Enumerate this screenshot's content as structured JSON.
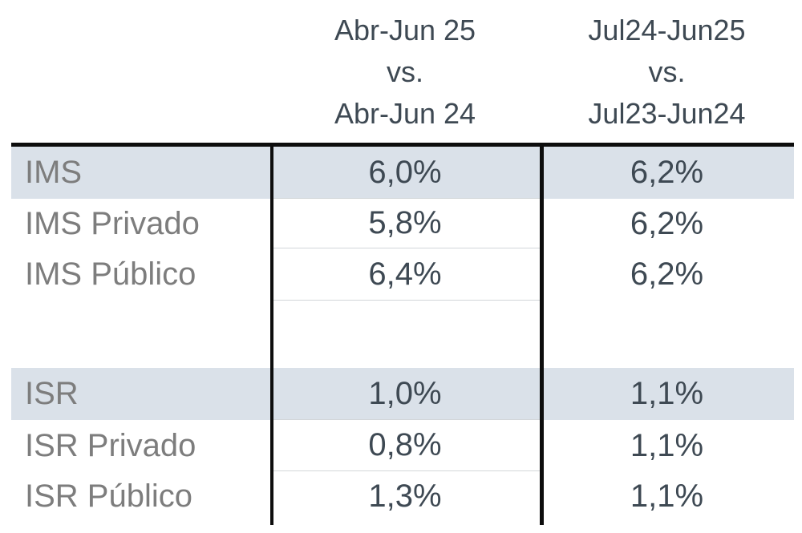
{
  "table": {
    "headers": [
      {
        "line1": "Abr-Jun 25",
        "line2": "vs.",
        "line3": "Abr-Jun 24"
      },
      {
        "line1": "Jul24-Jun25",
        "line2": "vs.",
        "line3": "Jul23-Jun24"
      }
    ],
    "rows": [
      {
        "label": "IMS",
        "col1": "6,0%",
        "col2": "6,2%",
        "highlight": true
      },
      {
        "label": "IMS Privado",
        "col1": "5,8%",
        "col2": "6,2%",
        "highlight": false
      },
      {
        "label": "IMS Público",
        "col1": "6,4%",
        "col2": "6,2%",
        "highlight": false
      },
      {
        "label": "",
        "col1": "",
        "col2": "",
        "highlight": false
      },
      {
        "label": "ISR",
        "col1": "1,0%",
        "col2": "1,1%",
        "highlight": true
      },
      {
        "label": "ISR Privado",
        "col1": "0,8%",
        "col2": "1,1%",
        "highlight": false
      },
      {
        "label": "ISR Público",
        "col1": "1,3%",
        "col2": "1,1%",
        "highlight": false
      }
    ],
    "colors": {
      "highlight_row_background": "#dae1e9",
      "value_text": "#3e4953",
      "label_text": "#7d7d7d",
      "black_rule": "#0d0d0d",
      "gridline": "#d2d6d9"
    }
  },
  "chart_data": {
    "type": "table",
    "title": "",
    "columns": [
      "",
      "Abr-Jun 25 vs. Abr-Jun 24",
      "Jul24-Jun25 vs. Jul23-Jun24"
    ],
    "rows": [
      [
        "IMS",
        "6,0%",
        "6,2%"
      ],
      [
        "IMS Privado",
        "5,8%",
        "6,2%"
      ],
      [
        "IMS Público",
        "6,4%",
        "6,2%"
      ],
      [
        "ISR",
        "1,0%",
        "1,1%"
      ],
      [
        "ISR Privado",
        "0,8%",
        "1,1%"
      ],
      [
        "ISR Público",
        "1,3%",
        "1,1%"
      ]
    ]
  }
}
